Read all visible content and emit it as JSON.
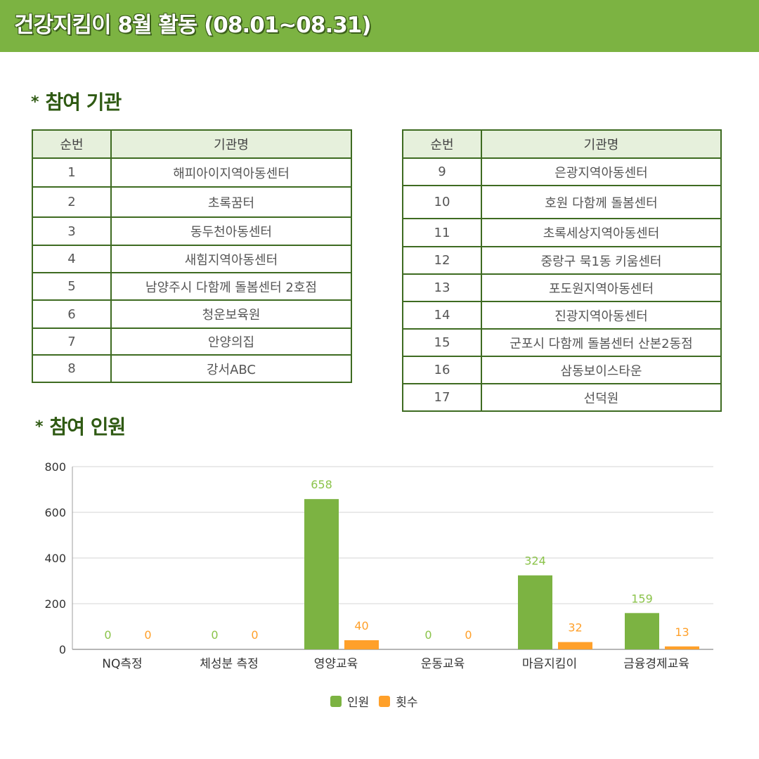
{
  "header": {
    "title": "건강지킴이 8월 활동 (08.01~08.31)"
  },
  "sections": {
    "orgs_title": "참여 기관",
    "people_title": "참여 인원",
    "bullet": "*"
  },
  "tables": {
    "left": {
      "headers": [
        "순번",
        "기관명"
      ],
      "rows": [
        [
          "1",
          "해피아이지역아동센터"
        ],
        [
          "2",
          "초록꿈터"
        ],
        [
          "3",
          "동두천아동센터"
        ],
        [
          "4",
          "새힘지역아동센터"
        ],
        [
          "5",
          "남양주시 다함께 돌봄센터 2호점"
        ],
        [
          "6",
          "청운보육원"
        ],
        [
          "7",
          "안양의집"
        ],
        [
          "8",
          "강서ABC"
        ]
      ]
    },
    "right": {
      "headers": [
        "순번",
        "기관명"
      ],
      "rows": [
        [
          "9",
          "은광지역아동센터"
        ],
        [
          "10",
          "호원 다함께 돌봄센터"
        ],
        [
          "11",
          "초록세상지역아동센터"
        ],
        [
          "12",
          "중랑구 묵1동 키움센터"
        ],
        [
          "13",
          "포도원지역아동센터"
        ],
        [
          "14",
          "진광지역아동센터"
        ],
        [
          "15",
          "군포시 다함께 돌봄센터 산본2동점"
        ],
        [
          "16",
          "삼동보이스타운"
        ],
        [
          "17",
          "선덕원"
        ]
      ]
    }
  },
  "chart_data": {
    "type": "bar",
    "categories": [
      "NQ측정",
      "체성분 측정",
      "영양교육",
      "운동교육",
      "마음지킴이",
      "금융경제교육"
    ],
    "series": [
      {
        "name": "인원",
        "values": [
          0,
          0,
          658,
          0,
          324,
          159
        ],
        "color": "#7cb342"
      },
      {
        "name": "횟수",
        "values": [
          0,
          0,
          40,
          0,
          32,
          13
        ],
        "color": "#ffa02a"
      }
    ],
    "ylim": [
      0,
      800
    ],
    "yticks": [
      0,
      200,
      400,
      600,
      800
    ],
    "grid": true,
    "legend": "bottom-center"
  }
}
